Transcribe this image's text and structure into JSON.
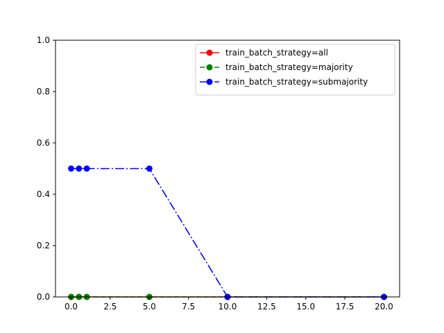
{
  "chart_data": {
    "type": "line",
    "title": "",
    "xlabel": "",
    "ylabel": "",
    "xlim": [
      -1,
      21
    ],
    "ylim": [
      0.0,
      1.0
    ],
    "x_ticks": [
      0.0,
      2.5,
      5.0,
      7.5,
      10.0,
      12.5,
      15.0,
      17.5,
      20.0
    ],
    "x_tick_labels": [
      "0.0",
      "2.5",
      "5.0",
      "7.5",
      "10.0",
      "12.5",
      "15.0",
      "17.5",
      "20.0"
    ],
    "y_ticks": [
      0.0,
      0.2,
      0.4,
      0.6,
      0.8,
      1.0
    ],
    "y_tick_labels": [
      "0.0",
      "0.2",
      "0.4",
      "0.6",
      "0.8",
      "1.0"
    ],
    "grid": false,
    "legend_position": "top-right",
    "series": [
      {
        "name": "train_batch_strategy=all",
        "color": "#ff0000",
        "line_style": "solid",
        "marker": "circle",
        "x": [
          0,
          0.5,
          1,
          5,
          10,
          20
        ],
        "values": [
          0,
          0,
          0,
          0,
          0,
          0
        ]
      },
      {
        "name": "train_batch_strategy=majority",
        "color": "#008000",
        "line_style": "dashed",
        "marker": "circle",
        "x": [
          0,
          0.5,
          1,
          5,
          10,
          20
        ],
        "values": [
          0,
          0,
          0,
          0,
          0,
          0
        ]
      },
      {
        "name": "train_batch_strategy=submajority",
        "color": "#0000ff",
        "line_style": "dashdot",
        "marker": "circle",
        "x": [
          0,
          0.5,
          1,
          5,
          10,
          20
        ],
        "values": [
          0.5,
          0.5,
          0.5,
          0.5,
          0,
          0
        ]
      }
    ]
  }
}
